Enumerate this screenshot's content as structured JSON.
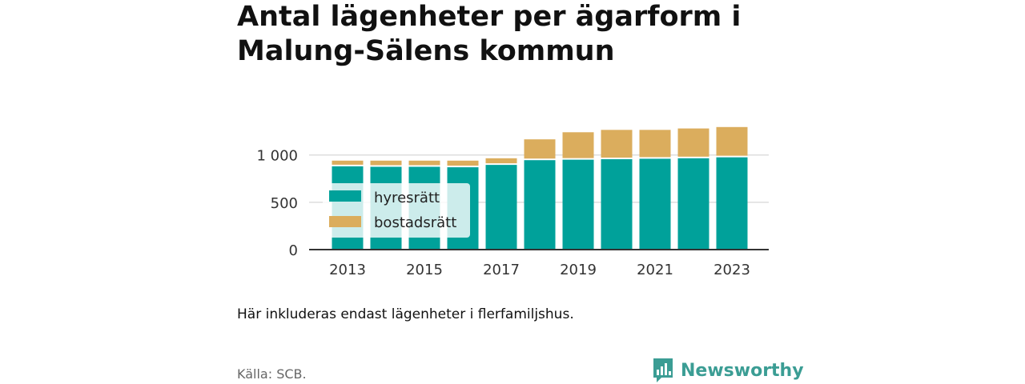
{
  "title_line1": "Antal lägenheter per ägarform i",
  "title_line2": "Malung-Sälens kommun",
  "note": "Här inkluderas endast lägenheter i flerfamiljshus.",
  "source": "Källa: SCB.",
  "brand": {
    "name": "Newsworthy",
    "icon": "bar-chart-speech-bubble-icon",
    "color": "#3b9d94"
  },
  "chart_data": {
    "type": "bar",
    "stacked": true,
    "categories": [
      "2013",
      "2014",
      "2015",
      "2016",
      "2017",
      "2018",
      "2019",
      "2020",
      "2021",
      "2022",
      "2023"
    ],
    "x_tick_labels": [
      "2013",
      "2015",
      "2017",
      "2019",
      "2021",
      "2023"
    ],
    "y_tick_labels": [
      "0",
      "500",
      "1 000"
    ],
    "y_ticks": [
      0,
      500,
      1000
    ],
    "ylim": [
      0,
      1350
    ],
    "grid": true,
    "legend_position": "lower-left",
    "series": [
      {
        "name": "hyresrätt",
        "color": "#00a19a",
        "values": [
          880,
          875,
          875,
          870,
          895,
          945,
          950,
          955,
          960,
          965,
          975
        ]
      },
      {
        "name": "bostadsrätt",
        "color": "#dbad5d",
        "values": [
          60,
          65,
          65,
          70,
          70,
          220,
          290,
          310,
          305,
          315,
          320
        ]
      }
    ]
  }
}
